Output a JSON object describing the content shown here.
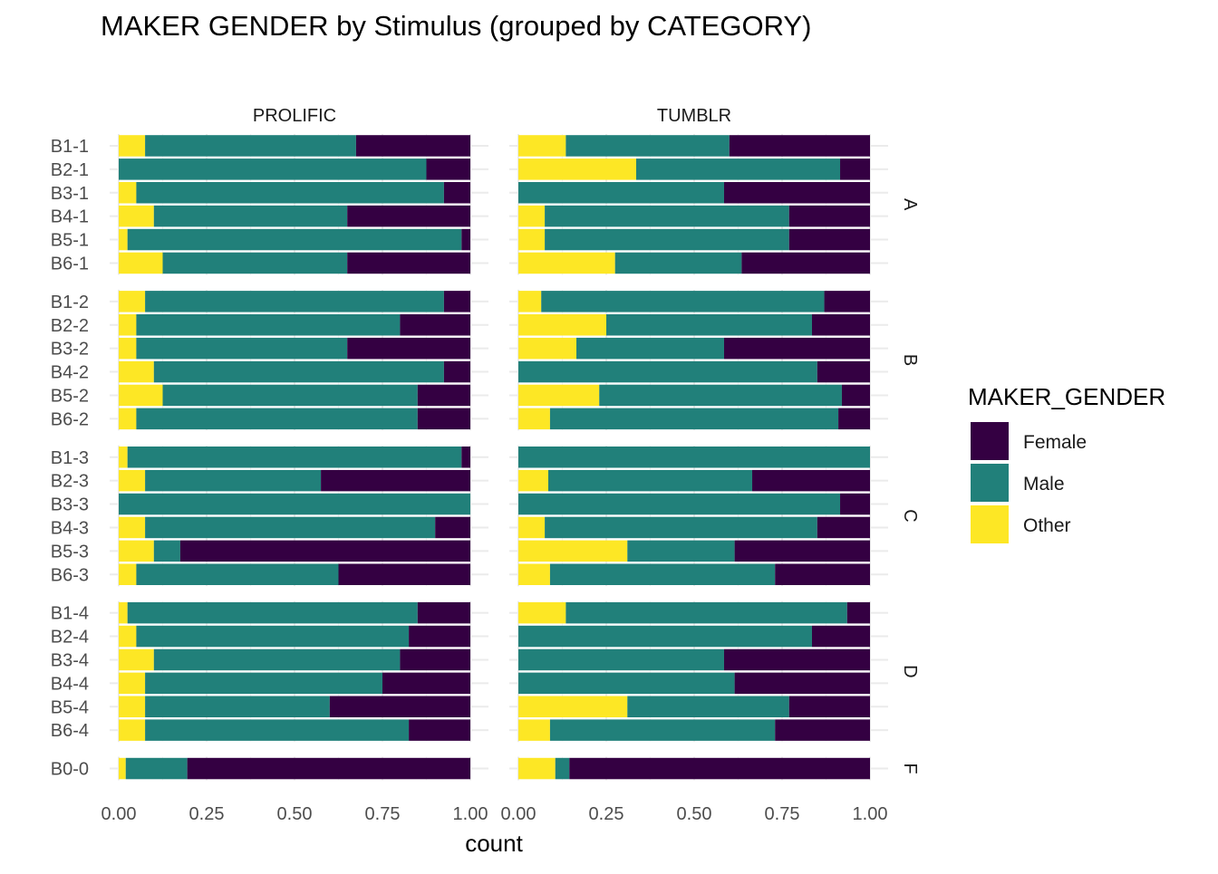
{
  "chart_data": {
    "type": "bar",
    "orientation": "horizontal",
    "stacked": true,
    "title": "MAKER GENDER by Stimulus (grouped by CATEGORY)",
    "xlabel": "count",
    "ylabel": "",
    "xlim": [
      0,
      1
    ],
    "x_ticks": [
      "0.00",
      "0.25",
      "0.50",
      "0.75",
      "1.00"
    ],
    "grid": true,
    "legend": {
      "title": "MAKER_GENDER",
      "position": "right",
      "entries": [
        {
          "name": "Female",
          "color": "#340042"
        },
        {
          "name": "Male",
          "color": "#21807a"
        },
        {
          "name": "Other",
          "color": "#fde725"
        }
      ]
    },
    "stack_order": [
      "Other",
      "Male",
      "Female"
    ],
    "columns": [
      "PROLIFIC",
      "TUMBLR"
    ],
    "rows": [
      {
        "label": "A",
        "stimuli": [
          {
            "name": "B1-1",
            "PROLIFIC": {
              "Other": 0.075,
              "Male": 0.6,
              "Female": 0.325
            },
            "TUMBLR": {
              "Other": 0.135,
              "Male": 0.465,
              "Female": 0.4
            }
          },
          {
            "name": "B2-1",
            "PROLIFIC": {
              "Other": 0.0,
              "Male": 0.875,
              "Female": 0.125
            },
            "TUMBLR": {
              "Other": 0.335,
              "Male": 0.58,
              "Female": 0.085
            }
          },
          {
            "name": "B3-1",
            "PROLIFIC": {
              "Other": 0.05,
              "Male": 0.875,
              "Female": 0.075
            },
            "TUMBLR": {
              "Other": 0.0,
              "Male": 0.585,
              "Female": 0.415
            }
          },
          {
            "name": "B4-1",
            "PROLIFIC": {
              "Other": 0.1,
              "Male": 0.55,
              "Female": 0.35
            },
            "TUMBLR": {
              "Other": 0.075,
              "Male": 0.695,
              "Female": 0.23
            }
          },
          {
            "name": "B5-1",
            "PROLIFIC": {
              "Other": 0.025,
              "Male": 0.95,
              "Female": 0.025
            },
            "TUMBLR": {
              "Other": 0.075,
              "Male": 0.695,
              "Female": 0.23
            }
          },
          {
            "name": "B6-1",
            "PROLIFIC": {
              "Other": 0.125,
              "Male": 0.525,
              "Female": 0.35
            },
            "TUMBLR": {
              "Other": 0.275,
              "Male": 0.36,
              "Female": 0.365
            }
          }
        ]
      },
      {
        "label": "B",
        "stimuli": [
          {
            "name": "B1-2",
            "PROLIFIC": {
              "Other": 0.075,
              "Male": 0.85,
              "Female": 0.075
            },
            "TUMBLR": {
              "Other": 0.065,
              "Male": 0.805,
              "Female": 0.13
            }
          },
          {
            "name": "B2-2",
            "PROLIFIC": {
              "Other": 0.05,
              "Male": 0.75,
              "Female": 0.2
            },
            "TUMBLR": {
              "Other": 0.25,
              "Male": 0.585,
              "Female": 0.165
            }
          },
          {
            "name": "B3-2",
            "PROLIFIC": {
              "Other": 0.05,
              "Male": 0.6,
              "Female": 0.35
            },
            "TUMBLR": {
              "Other": 0.165,
              "Male": 0.42,
              "Female": 0.415
            }
          },
          {
            "name": "B4-2",
            "PROLIFIC": {
              "Other": 0.1,
              "Male": 0.825,
              "Female": 0.075
            },
            "TUMBLR": {
              "Other": 0.0,
              "Male": 0.85,
              "Female": 0.15
            }
          },
          {
            "name": "B5-2",
            "PROLIFIC": {
              "Other": 0.125,
              "Male": 0.725,
              "Female": 0.15
            },
            "TUMBLR": {
              "Other": 0.23,
              "Male": 0.69,
              "Female": 0.08
            }
          },
          {
            "name": "B6-2",
            "PROLIFIC": {
              "Other": 0.05,
              "Male": 0.8,
              "Female": 0.15
            },
            "TUMBLR": {
              "Other": 0.09,
              "Male": 0.82,
              "Female": 0.09
            }
          }
        ]
      },
      {
        "label": "C",
        "stimuli": [
          {
            "name": "B1-3",
            "PROLIFIC": {
              "Other": 0.025,
              "Male": 0.95,
              "Female": 0.025
            },
            "TUMBLR": {
              "Other": 0.0,
              "Male": 1.0,
              "Female": 0.0
            }
          },
          {
            "name": "B2-3",
            "PROLIFIC": {
              "Other": 0.075,
              "Male": 0.5,
              "Female": 0.425
            },
            "TUMBLR": {
              "Other": 0.085,
              "Male": 0.58,
              "Female": 0.335
            }
          },
          {
            "name": "B3-3",
            "PROLIFIC": {
              "Other": 0.0,
              "Male": 1.0,
              "Female": 0.0
            },
            "TUMBLR": {
              "Other": 0.0,
              "Male": 0.915,
              "Female": 0.085
            }
          },
          {
            "name": "B4-3",
            "PROLIFIC": {
              "Other": 0.075,
              "Male": 0.825,
              "Female": 0.1
            },
            "TUMBLR": {
              "Other": 0.075,
              "Male": 0.775,
              "Female": 0.15
            }
          },
          {
            "name": "B5-3",
            "PROLIFIC": {
              "Other": 0.1,
              "Male": 0.075,
              "Female": 0.825
            },
            "TUMBLR": {
              "Other": 0.31,
              "Male": 0.305,
              "Female": 0.385
            }
          },
          {
            "name": "B6-3",
            "PROLIFIC": {
              "Other": 0.05,
              "Male": 0.575,
              "Female": 0.375
            },
            "TUMBLR": {
              "Other": 0.09,
              "Male": 0.64,
              "Female": 0.27
            }
          }
        ]
      },
      {
        "label": "D",
        "stimuli": [
          {
            "name": "B1-4",
            "PROLIFIC": {
              "Other": 0.025,
              "Male": 0.825,
              "Female": 0.15
            },
            "TUMBLR": {
              "Other": 0.135,
              "Male": 0.8,
              "Female": 0.065
            }
          },
          {
            "name": "B2-4",
            "PROLIFIC": {
              "Other": 0.05,
              "Male": 0.775,
              "Female": 0.175
            },
            "TUMBLR": {
              "Other": 0.0,
              "Male": 0.835,
              "Female": 0.165
            }
          },
          {
            "name": "B3-4",
            "PROLIFIC": {
              "Other": 0.1,
              "Male": 0.7,
              "Female": 0.2
            },
            "TUMBLR": {
              "Other": 0.0,
              "Male": 0.585,
              "Female": 0.415
            }
          },
          {
            "name": "B4-4",
            "PROLIFIC": {
              "Other": 0.075,
              "Male": 0.675,
              "Female": 0.25
            },
            "TUMBLR": {
              "Other": 0.0,
              "Male": 0.615,
              "Female": 0.385
            }
          },
          {
            "name": "B5-4",
            "PROLIFIC": {
              "Other": 0.075,
              "Male": 0.525,
              "Female": 0.4
            },
            "TUMBLR": {
              "Other": 0.31,
              "Male": 0.46,
              "Female": 0.23
            }
          },
          {
            "name": "B6-4",
            "PROLIFIC": {
              "Other": 0.075,
              "Male": 0.75,
              "Female": 0.175
            },
            "TUMBLR": {
              "Other": 0.09,
              "Male": 0.64,
              "Female": 0.27
            }
          }
        ]
      },
      {
        "label": "F",
        "stimuli": [
          {
            "name": "B0-0",
            "PROLIFIC": {
              "Other": 0.02,
              "Male": 0.175,
              "Female": 0.805
            },
            "TUMBLR": {
              "Other": 0.105,
              "Male": 0.04,
              "Female": 0.855
            }
          }
        ]
      }
    ]
  }
}
